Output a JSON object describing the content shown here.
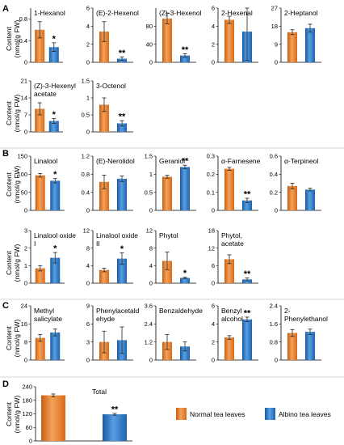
{
  "panel_letters": [
    "A",
    "B",
    "C",
    "D"
  ],
  "content_ylabel_line1": "Content",
  "content_ylabel_line2": "(nmol/g FW)",
  "legend": {
    "normal": "Normal tea leaves",
    "albino": "Albino tea leaves"
  },
  "colors": {
    "normal": "#e87722",
    "normal_light": "#f4a25a",
    "albino": "#1f6fc2",
    "albino_light": "#5a9fe0"
  },
  "chart_data": [
    {
      "type": "bar",
      "panel": "A",
      "title": [
        "1-Hexanol"
      ],
      "ylim": [
        0,
        1
      ],
      "ticks": [
        0,
        0.4,
        0.8
      ],
      "tick_labels": [
        "0",
        "0.4",
        "0.8"
      ],
      "categories": [
        "Normal tea leaves",
        "Albino tea leaves"
      ],
      "values": [
        0.6,
        0.28
      ],
      "errors": [
        0.15,
        0.08
      ],
      "sig": "*"
    },
    {
      "type": "bar",
      "panel": "A",
      "title": [
        "(E)-2-Hexenol"
      ],
      "ylim": [
        0,
        6
      ],
      "ticks": [
        0,
        2,
        4,
        6
      ],
      "tick_labels": [
        "0",
        "2",
        "4",
        "6"
      ],
      "categories": [
        "Normal tea leaves",
        "Albino tea leaves"
      ],
      "values": [
        3.4,
        0.4
      ],
      "errors": [
        1.1,
        0.2
      ],
      "sig": "**"
    },
    {
      "type": "bar",
      "panel": "A",
      "title": [
        "(Z)-3-Hexenol"
      ],
      "ylim": [
        0,
        120
      ],
      "ticks": [
        0,
        40,
        80
      ],
      "tick_labels": [
        "0",
        "40",
        "80"
      ],
      "categories": [
        "Normal tea leaves",
        "Albino tea leaves"
      ],
      "values": [
        97,
        15
      ],
      "errors": [
        12,
        4
      ],
      "sig": "**"
    },
    {
      "type": "bar",
      "panel": "A",
      "title": [
        "2-Hexenal"
      ],
      "ylim": [
        0,
        6
      ],
      "ticks": [
        0,
        2,
        4,
        6
      ],
      "tick_labels": [
        "0",
        "2",
        "4",
        "6"
      ],
      "categories": [
        "Normal tea leaves",
        "Albino tea leaves"
      ],
      "values": [
        4.7,
        3.4
      ],
      "errors": [
        0.4,
        3.2
      ],
      "sig": ""
    },
    {
      "type": "bar",
      "panel": "A",
      "title": [
        "2-Heptanol"
      ],
      "ylim": [
        0,
        27
      ],
      "ticks": [
        0,
        9,
        18,
        27
      ],
      "tick_labels": [
        "0",
        "9",
        "18",
        "27"
      ],
      "categories": [
        "Normal tea leaves",
        "Albino tea leaves"
      ],
      "values": [
        15,
        17
      ],
      "errors": [
        1.2,
        2.0
      ],
      "sig": ""
    },
    {
      "type": "bar",
      "panel": "A",
      "title": [
        "(Z)-3-Hexenyl",
        "acetate"
      ],
      "ylim": [
        0,
        21
      ],
      "ticks": [
        0,
        7,
        14,
        21
      ],
      "tick_labels": [
        "0",
        "7",
        "14",
        "21"
      ],
      "categories": [
        "Normal tea leaves",
        "Albino tea leaves"
      ],
      "values": [
        9.5,
        4.5
      ],
      "errors": [
        2.5,
        1.0
      ],
      "sig": "*"
    },
    {
      "type": "bar",
      "panel": "A",
      "title": [
        "3-Octenol"
      ],
      "ylim": [
        0,
        1.5
      ],
      "ticks": [
        0,
        0.5,
        1,
        1.5
      ],
      "tick_labels": [
        "0",
        "0.5",
        "1",
        "1.5"
      ],
      "categories": [
        "Normal tea leaves",
        "Albino tea leaves"
      ],
      "values": [
        0.8,
        0.25
      ],
      "errors": [
        0.2,
        0.08
      ],
      "sig": "**"
    },
    {
      "type": "bar",
      "panel": "B",
      "title": [
        "Linalool"
      ],
      "ylim": [
        0,
        150
      ],
      "ticks": [
        0,
        50,
        100,
        150
      ],
      "tick_labels": [
        "0",
        "50",
        "100",
        "150"
      ],
      "categories": [
        "Normal tea leaves",
        "Albino tea leaves"
      ],
      "values": [
        97,
        82
      ],
      "errors": [
        5,
        6
      ],
      "sig": "*"
    },
    {
      "type": "bar",
      "panel": "B",
      "title": [
        "(E)-Nerolidol"
      ],
      "ylim": [
        0,
        1.2
      ],
      "ticks": [
        0,
        0.4,
        0.8,
        1.2
      ],
      "tick_labels": [
        "0",
        "0.4",
        "0.8",
        "1.2"
      ],
      "categories": [
        "Normal tea leaves",
        "Albino tea leaves"
      ],
      "values": [
        0.63,
        0.7
      ],
      "errors": [
        0.15,
        0.06
      ],
      "sig": ""
    },
    {
      "type": "bar",
      "panel": "B",
      "title": [
        "Geraniol"
      ],
      "ylim": [
        0,
        1.5
      ],
      "ticks": [
        0,
        0.5,
        1,
        1.5
      ],
      "tick_labels": [
        "0",
        "0.5",
        "1",
        "1.5"
      ],
      "categories": [
        "Normal tea leaves",
        "Albino tea leaves"
      ],
      "values": [
        0.93,
        1.2
      ],
      "errors": [
        0.04,
        0.05
      ],
      "sig": "**"
    },
    {
      "type": "bar",
      "panel": "B",
      "title": [
        "α-Farnesene"
      ],
      "ylim": [
        0,
        0.3
      ],
      "ticks": [
        0,
        0.1,
        0.2,
        0.3
      ],
      "tick_labels": [
        "0",
        "0.1",
        "0.2",
        "0.3"
      ],
      "categories": [
        "Normal tea leaves",
        "Albino tea leaves"
      ],
      "values": [
        0.23,
        0.055
      ],
      "errors": [
        0.008,
        0.012
      ],
      "sig": "**"
    },
    {
      "type": "bar",
      "panel": "B",
      "title": [
        "α-Terpineol"
      ],
      "ylim": [
        0,
        0.6
      ],
      "ticks": [
        0,
        0.2,
        0.4,
        0.6
      ],
      "tick_labels": [
        "0",
        "0.2",
        "0.4",
        "0.6"
      ],
      "categories": [
        "Normal tea leaves",
        "Albino tea leaves"
      ],
      "values": [
        0.27,
        0.23
      ],
      "errors": [
        0.03,
        0.015
      ],
      "sig": ""
    },
    {
      "type": "bar",
      "panel": "B",
      "title": [
        "Linalool oxide",
        "I"
      ],
      "ylim": [
        0,
        3
      ],
      "ticks": [
        0,
        1,
        2,
        3
      ],
      "tick_labels": [
        "0",
        "1",
        "2",
        "3"
      ],
      "categories": [
        "Normal tea leaves",
        "Albino tea leaves"
      ],
      "values": [
        0.85,
        1.45
      ],
      "errors": [
        0.15,
        0.3
      ],
      "sig": "*"
    },
    {
      "type": "bar",
      "panel": "B",
      "title": [
        "Linalool oxide",
        "II"
      ],
      "ylim": [
        0,
        12
      ],
      "ticks": [
        0,
        4,
        8,
        12
      ],
      "tick_labels": [
        "0",
        "4",
        "8",
        "12"
      ],
      "categories": [
        "Normal tea leaves",
        "Albino tea leaves"
      ],
      "values": [
        3.0,
        5.6
      ],
      "errors": [
        0.4,
        1.3
      ],
      "sig": "*"
    },
    {
      "type": "bar",
      "panel": "B",
      "title": [
        "Phytol"
      ],
      "ylim": [
        0,
        12
      ],
      "ticks": [
        0,
        4,
        8,
        12
      ],
      "tick_labels": [
        "0",
        "4",
        "8",
        "12"
      ],
      "categories": [
        "Normal tea leaves",
        "Albino tea leaves"
      ],
      "values": [
        5.1,
        1.2
      ],
      "errors": [
        2.0,
        0.2
      ],
      "sig": "*"
    },
    {
      "type": "bar",
      "panel": "B",
      "title": [
        "Phytol,",
        "acetate"
      ],
      "ylim": [
        0,
        18
      ],
      "ticks": [
        0,
        6,
        12,
        18
      ],
      "tick_labels": [
        "0",
        "6",
        "12",
        "18"
      ],
      "categories": [
        "Normal tea leaves",
        "Albino tea leaves"
      ],
      "values": [
        8.2,
        1.3
      ],
      "errors": [
        1.5,
        0.5
      ],
      "sig": "**"
    },
    {
      "type": "bar",
      "panel": "C",
      "title": [
        "Methyl",
        "salicylate"
      ],
      "ylim": [
        0,
        24
      ],
      "ticks": [
        0,
        8,
        16,
        24
      ],
      "tick_labels": [
        "0",
        "8",
        "16",
        "24"
      ],
      "categories": [
        "Normal tea leaves",
        "Albino tea leaves"
      ],
      "values": [
        9.8,
        12.2
      ],
      "errors": [
        1.5,
        1.5
      ],
      "sig": ""
    },
    {
      "type": "bar",
      "panel": "C",
      "title": [
        "Phenylacetald",
        "ehyde"
      ],
      "ylim": [
        0,
        9
      ],
      "ticks": [
        0,
        3,
        6,
        9
      ],
      "tick_labels": [
        "0",
        "3",
        "6",
        "9"
      ],
      "categories": [
        "Normal tea leaves",
        "Albino tea leaves"
      ],
      "values": [
        3.0,
        3.3
      ],
      "errors": [
        1.8,
        2.2
      ],
      "sig": ""
    },
    {
      "type": "bar",
      "panel": "C",
      "title": [
        "Benzaldehyde"
      ],
      "ylim": [
        0,
        3.6
      ],
      "ticks": [
        0,
        1.2,
        2.4,
        3.6
      ],
      "tick_labels": [
        "0",
        "1.2",
        "2.4",
        "3.6"
      ],
      "categories": [
        "Normal tea leaves",
        "Albino tea leaves"
      ],
      "values": [
        1.2,
        0.9
      ],
      "errors": [
        0.5,
        0.3
      ],
      "sig": ""
    },
    {
      "type": "bar",
      "panel": "C",
      "title": [
        "Benzyl",
        "alcohol"
      ],
      "ylim": [
        0,
        6
      ],
      "ticks": [
        0,
        2,
        4,
        6
      ],
      "tick_labels": [
        "0",
        "2",
        "4",
        "6"
      ],
      "categories": [
        "Normal tea leaves",
        "Albino tea leaves"
      ],
      "values": [
        2.5,
        4.5
      ],
      "errors": [
        0.2,
        0.25
      ],
      "sig": "**"
    },
    {
      "type": "bar",
      "panel": "C",
      "title": [
        "2-",
        "Phenylethanol"
      ],
      "ylim": [
        0,
        2.4
      ],
      "ticks": [
        0,
        0.8,
        1.6,
        2.4
      ],
      "tick_labels": [
        "0",
        "0.8",
        "1.6",
        "2.4"
      ],
      "categories": [
        "Normal tea leaves",
        "Albino tea leaves"
      ],
      "values": [
        1.2,
        1.25
      ],
      "errors": [
        0.15,
        0.12
      ],
      "sig": ""
    },
    {
      "type": "bar",
      "panel": "D",
      "title": [
        "Total"
      ],
      "ylim": [
        0,
        240
      ],
      "ticks": [
        0,
        60,
        120,
        180,
        240
      ],
      "tick_labels": [
        "0",
        "60",
        "120",
        "180",
        "240"
      ],
      "categories": [
        "Normal tea leaves",
        "Albino tea leaves"
      ],
      "values": [
        202,
        118
      ],
      "errors": [
        6,
        4
      ],
      "sig": "**"
    }
  ]
}
